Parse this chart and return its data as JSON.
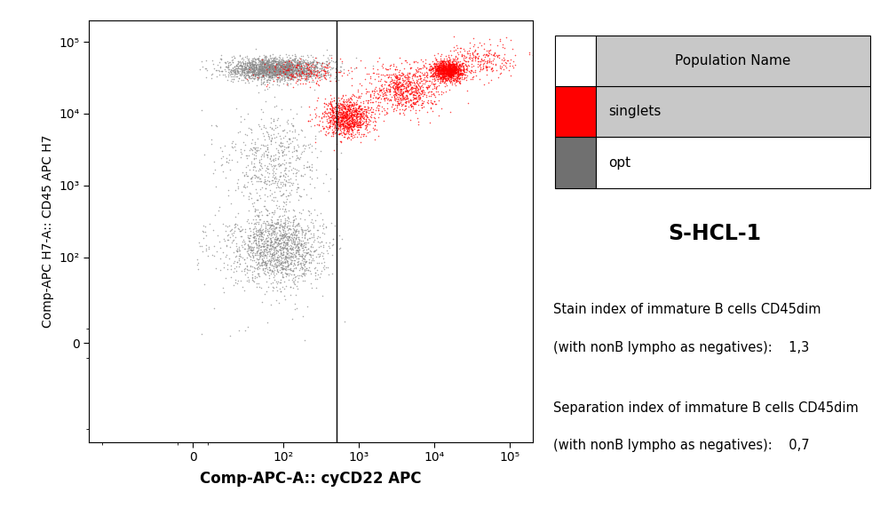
{
  "xlabel": "Comp-APC-A:: cyCD22 APC",
  "ylabel": "Comp-APC H7-A:: CD45 APC H7",
  "title_right": "S-HCL-1",
  "legend_header": "Population Name",
  "legend_entries": [
    {
      "label": "singlets",
      "color": "#ff0000"
    },
    {
      "label": "opt",
      "color": "#707070"
    }
  ],
  "annotation_line1": "Stain index of immature B cells CD45dim",
  "annotation_line2": "(with nonB lympho as negatives):    1,3",
  "annotation_line3": "Separation index of immature B cells CD45dim",
  "annotation_line4": "(with nonB lympho as negatives):    0,7",
  "bg_color": "#ffffff",
  "plot_bg_color": "#ffffff",
  "dot_size": 1.2,
  "dot_alpha": 0.7,
  "gray_color": "#888888",
  "red_color": "#ff0000",
  "vline_x": 500,
  "xticks": [
    0,
    100,
    1000,
    10000,
    100000
  ],
  "yticks": [
    0,
    100,
    1000,
    10000,
    100000
  ],
  "xtick_labels": [
    "0",
    "10²",
    "10³",
    "10⁴",
    "10⁵"
  ],
  "ytick_labels": [
    "0",
    "10²",
    "10³",
    "10⁴",
    "10⁵"
  ],
  "table_header_color": "#c8c8c8",
  "table_singlets_row_color": "#c8c8c8",
  "table_opt_row_color": "#ffffff"
}
